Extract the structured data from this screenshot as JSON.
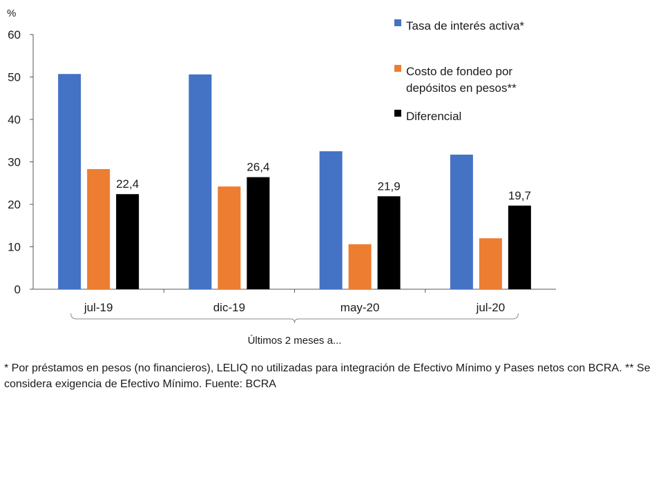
{
  "chart_data": {
    "type": "bar",
    "unit_label": "%",
    "categories": [
      "jul-19",
      "dic-19",
      "may-20",
      "jul-20"
    ],
    "series": [
      {
        "name": "Tasa de interés activa*",
        "color": "#4472C4",
        "values": [
          50.7,
          50.6,
          32.5,
          31.7
        ]
      },
      {
        "name": "Costo de fondeo por depósitos en pesos**",
        "name_lines": [
          "Costo de fondeo por",
          "depósitos en pesos**"
        ],
        "color": "#ED7D31",
        "values": [
          28.3,
          24.2,
          10.6,
          12.0
        ]
      },
      {
        "name": "Diferencial",
        "color": "#000000",
        "values": [
          22.4,
          26.4,
          21.9,
          19.7
        ]
      }
    ],
    "data_labels": {
      "series_index": 2,
      "labels": [
        "22,4",
        "26,4",
        "21,9",
        "19,7"
      ]
    },
    "ylim": [
      0,
      60
    ],
    "yticks": [
      0,
      10,
      20,
      30,
      40,
      50,
      60
    ],
    "group_label": "Últimos 2 meses a...",
    "legend_position": "top-right",
    "grid": false
  },
  "footnote": "* Por préstamos en pesos (no financieros), LELIQ no utilizadas para integración de Efectivo Mínimo y Pases netos con BCRA. ** Se considera exigencia de Efectivo Mínimo. Fuente: BCRA"
}
